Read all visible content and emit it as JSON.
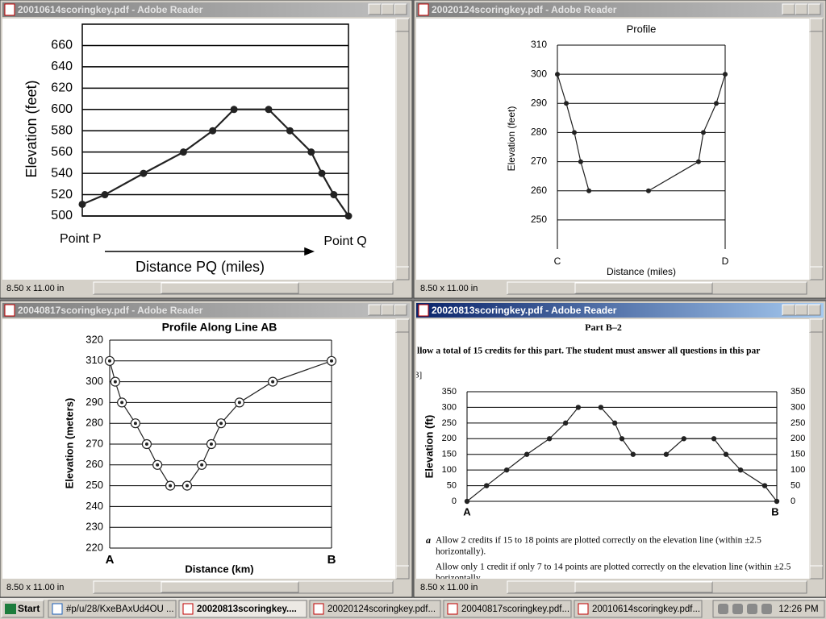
{
  "windows": [
    {
      "title": "20010614scoringkey.pdf - Adobe Reader",
      "page_size": "8.50 x 11.00 in",
      "active": false
    },
    {
      "title": "20020124scoringkey.pdf - Adobe Reader",
      "page_size": "8.50 x 11.00 in",
      "active": false
    },
    {
      "title": "20040817scoringkey.pdf - Adobe Reader",
      "page_size": "8.50 x 11.00 in",
      "active": false
    },
    {
      "title": "20020813scoringkey.pdf - Adobe Reader",
      "page_size": "8.50 x 11.00 in",
      "active": true,
      "document": {
        "heading": "Part B–2",
        "instruction": "llow a total of 15 credits for this part. The student must answer all questions in this par",
        "fragment": "3]",
        "item_letter": "a",
        "lines": [
          "Allow 2 credits if 15 to 18 points are plotted correctly on the elevation line (within ±2.5",
          "horizontally).",
          "Allow only 1 credit if only 7 to 14 points are plotted correctly on the elevation line (within ±2.5",
          "horizontally."
        ]
      }
    }
  ],
  "chart_data": [
    {
      "type": "line",
      "y_label": "Elevation (feet)",
      "x_label": "Distance PQ (miles)",
      "x_start_label": "Point P",
      "x_end_label": "Point Q",
      "x": [
        0,
        8.5,
        23,
        38,
        49,
        57,
        70,
        78,
        86,
        90,
        94.5,
        100
      ],
      "values": [
        511,
        520,
        540,
        560,
        580,
        600,
        600,
        580,
        560,
        540,
        520,
        500
      ],
      "xlim": [
        0,
        100
      ],
      "ylim": [
        500,
        680
      ],
      "yticks": [
        500,
        520,
        540,
        560,
        580,
        600,
        620,
        640,
        660
      ],
      "color": "#222222",
      "grid": true
    },
    {
      "type": "line",
      "title": "Profile",
      "y_label": "Elevation (feet)",
      "x_label": "Distance (miles)",
      "x_start_label": "C",
      "x_end_label": "D",
      "x": [
        0,
        5.3,
        10.1,
        13.9,
        18.8,
        54.3,
        84.1,
        87,
        94.7,
        100
      ],
      "values": [
        300,
        290,
        280,
        270,
        260,
        260,
        270,
        280,
        290,
        300
      ],
      "xlim": [
        0,
        100
      ],
      "ylim": [
        240,
        310
      ],
      "yticks": [
        250,
        260,
        270,
        280,
        290,
        300,
        310
      ],
      "color": "#222222",
      "grid": true
    },
    {
      "type": "line",
      "title": "Profile Along Line AB",
      "y_label": "Elevation (meters)",
      "x_label": "Distance (km)",
      "x_start_label": "A",
      "x_end_label": "B",
      "x": [
        0,
        2.5,
        5.5,
        11.6,
        16.7,
        21.5,
        27.3,
        34.9,
        41.5,
        45.8,
        50.2,
        58.5,
        73.5,
        100
      ],
      "values": [
        310,
        300,
        290,
        280,
        270,
        260,
        250,
        250,
        260,
        270,
        280,
        290,
        300,
        310
      ],
      "xlim": [
        0,
        100
      ],
      "ylim": [
        220,
        320
      ],
      "yticks": [
        220,
        230,
        240,
        250,
        260,
        270,
        280,
        290,
        300,
        310,
        320
      ],
      "color": "#222222",
      "grid": true
    },
    {
      "type": "line",
      "y_label": "Elevation (ft)",
      "x_start_label": "A",
      "x_end_label": "B",
      "x": [
        0,
        6.3,
        12.8,
        19.3,
        26.6,
        31.8,
        35.9,
        43.2,
        47.7,
        50,
        53.6,
        64.3,
        70,
        79.7,
        83.6,
        88.3,
        96.1,
        100
      ],
      "values": [
        0,
        50,
        100,
        150,
        200,
        250,
        300,
        300,
        250,
        200,
        150,
        150,
        200,
        200,
        150,
        100,
        50,
        0
      ],
      "xlim": [
        0,
        100
      ],
      "ylim": [
        0,
        350
      ],
      "yticks": [
        0,
        50,
        100,
        150,
        200,
        250,
        300,
        350
      ],
      "color": "#222222",
      "grid": true,
      "right_axis_ticks": true
    }
  ],
  "taskbar": {
    "start": "Start",
    "tasks": [
      "#p/u/28/KxeBAxUd4OU ...",
      "20020813scoringkey....",
      "20020124scoringkey.pdf...",
      "20040817scoringkey.pdf...",
      "20010614scoringkey.pdf..."
    ],
    "active_task": 1,
    "clock": "12:26 PM"
  }
}
